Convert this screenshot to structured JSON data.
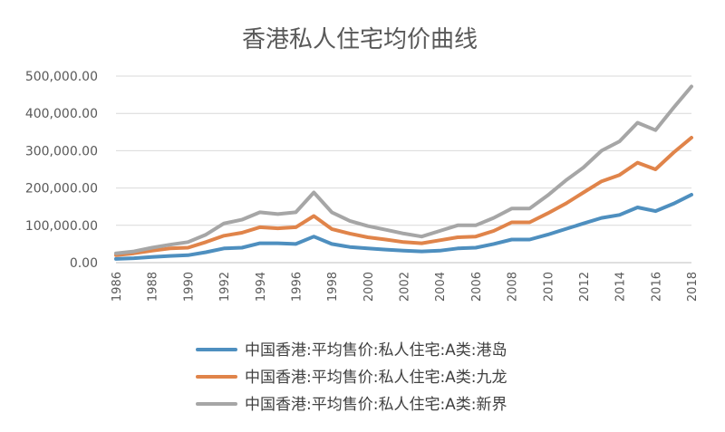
{
  "chart_data": {
    "type": "line",
    "title": "香港私人住宅均价曲线",
    "xlabel": "",
    "ylabel": "",
    "ylim": [
      0,
      500000
    ],
    "yticks": [
      "0.00",
      "100,000.00",
      "200,000.00",
      "300,000.00",
      "400,000.00",
      "500,000.00"
    ],
    "ytick_values": [
      0,
      100000,
      200000,
      300000,
      400000,
      500000
    ],
    "xtick_labels": [
      "1986",
      "1988",
      "1990",
      "1992",
      "1994",
      "1996",
      "1998",
      "2000",
      "2002",
      "2004",
      "2006",
      "2008",
      "2010",
      "2012",
      "2014",
      "2016",
      "2018"
    ],
    "x": [
      1986,
      1987,
      1988,
      1989,
      1990,
      1991,
      1992,
      1993,
      1994,
      1995,
      1996,
      1997,
      1998,
      1999,
      2000,
      2001,
      2002,
      2003,
      2004,
      2005,
      2006,
      2007,
      2008,
      2009,
      2010,
      2011,
      2012,
      2013,
      2014,
      2015,
      2016,
      2017,
      2018
    ],
    "grid": true,
    "legend_position": "bottom",
    "series": [
      {
        "name": "中国香港:平均售价:私人住宅:A类:港岛",
        "color": "#4e8fbf",
        "values": [
          10000,
          12000,
          15000,
          18000,
          20000,
          28000,
          38000,
          40000,
          52000,
          52000,
          50000,
          70000,
          50000,
          42000,
          38000,
          35000,
          32000,
          30000,
          32000,
          38000,
          40000,
          50000,
          62000,
          62000,
          75000,
          90000,
          105000,
          120000,
          128000,
          148000,
          138000,
          158000,
          182000
        ]
      },
      {
        "name": "中国香港:平均售价:私人住宅:A类:九龙",
        "color": "#e0844a",
        "values": [
          20000,
          25000,
          32000,
          38000,
          40000,
          55000,
          72000,
          80000,
          95000,
          92000,
          95000,
          125000,
          90000,
          78000,
          68000,
          62000,
          55000,
          52000,
          60000,
          68000,
          70000,
          85000,
          108000,
          108000,
          132000,
          158000,
          188000,
          218000,
          235000,
          268000,
          250000,
          295000,
          335000
        ]
      },
      {
        "name": "中国香港:平均售价:私人住宅:A类:新界",
        "color": "#a6a6a6",
        "values": [
          25000,
          30000,
          40000,
          48000,
          55000,
          75000,
          105000,
          115000,
          135000,
          130000,
          135000,
          188000,
          135000,
          112000,
          98000,
          88000,
          78000,
          70000,
          85000,
          100000,
          100000,
          120000,
          145000,
          145000,
          180000,
          220000,
          255000,
          300000,
          325000,
          375000,
          355000,
          415000,
          472000
        ]
      }
    ]
  }
}
